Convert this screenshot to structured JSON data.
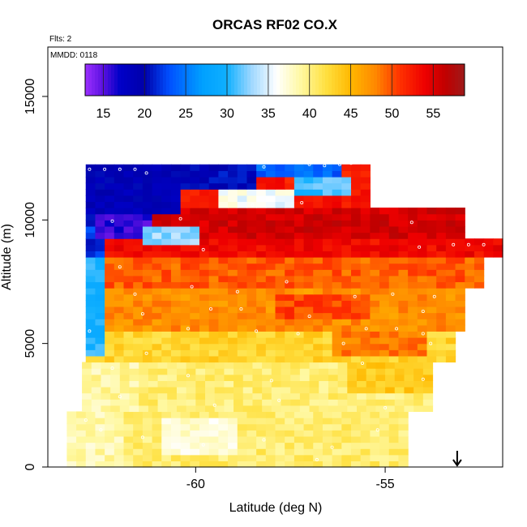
{
  "chart_data": {
    "type": "heatmap",
    "title": "ORCAS RF02 CO.X",
    "note_flights": "Flts: 2",
    "note_mmdd": "MMDD: 0118",
    "xlabel": "Latitude (deg N)",
    "ylabel": "Altitude (m)",
    "xlim": [
      -63.9,
      -51.9
    ],
    "ylim": [
      0,
      17000
    ],
    "x_ticks": [
      -60,
      -55
    ],
    "x_tick_labels": [
      "-60",
      "-55"
    ],
    "y_ticks": [
      0,
      5000,
      10000,
      15000
    ],
    "y_tick_labels": [
      "0",
      "5000",
      "10000",
      "15000"
    ],
    "colorbar": {
      "min": 12.8,
      "max": 58.8,
      "ticks": [
        15,
        20,
        25,
        30,
        35,
        40,
        45,
        50,
        55
      ],
      "tick_labels": [
        "15",
        "20",
        "25",
        "30",
        "35",
        "40",
        "45",
        "50",
        "55"
      ],
      "dividers": [
        15,
        20,
        25,
        30,
        35,
        40,
        45,
        50,
        55
      ],
      "stops": [
        [
          12.8,
          "#9b30ff"
        ],
        [
          15,
          "#5a10e0"
        ],
        [
          17,
          "#0000c8"
        ],
        [
          20,
          "#0000aa"
        ],
        [
          23,
          "#0050ff"
        ],
        [
          27,
          "#00a0ff"
        ],
        [
          30,
          "#10b0ff"
        ],
        [
          33,
          "#a0d8ff"
        ],
        [
          36,
          "#ffffff"
        ],
        [
          39,
          "#fff8a0"
        ],
        [
          42,
          "#ffe040"
        ],
        [
          45,
          "#ffb800"
        ],
        [
          48,
          "#ff8800"
        ],
        [
          51,
          "#ff3000"
        ],
        [
          54,
          "#ee0000"
        ],
        [
          56.5,
          "#c00000"
        ],
        [
          58.8,
          "#9e1a1a"
        ]
      ]
    },
    "grid": false,
    "arrow_marker_lat": -53.1,
    "cell_size": {
      "dlat": 0.25,
      "dalt": 250
    },
    "bands": [
      {
        "a0": 0,
        "a1": 2250,
        "lat0": -63.4,
        "lat1": -54.5,
        "v": 40.5
      },
      {
        "a0": 2250,
        "a1": 4250,
        "lat0": -63.0,
        "lat1": -53.8,
        "v": 40.3
      },
      {
        "a0": 4250,
        "a1": 5500,
        "lat0": -62.9,
        "lat1": -53.2,
        "v": 42.8
      },
      {
        "a0": 5500,
        "a1": 7250,
        "lat0": -62.9,
        "lat1": -53.1,
        "v": 47.5
      },
      {
        "a0": 7250,
        "a1": 8500,
        "lat0": -62.9,
        "lat1": -52.5,
        "v": 49.5
      },
      {
        "a0": 8500,
        "a1": 9250,
        "lat0": -62.9,
        "lat1": -52.0,
        "v": 53.5
      },
      {
        "a0": 9250,
        "a1": 10500,
        "lat0": -62.9,
        "lat1": -53.0,
        "v": 55.5
      },
      {
        "a0": 10500,
        "a1": 12250,
        "lat0": -62.9,
        "lat1": -55.5,
        "v": 52.5
      }
    ],
    "regions": [
      {
        "lat0": -62.9,
        "lat1": -62.3,
        "a0": 4500,
        "a1": 8500,
        "v": 30
      },
      {
        "lat0": -62.9,
        "lat1": -62.5,
        "a0": 8500,
        "a1": 11000,
        "v": 22
      },
      {
        "lat0": -62.9,
        "lat1": -60.5,
        "a0": 10250,
        "a1": 12250,
        "v": 19
      },
      {
        "lat0": -62.6,
        "lat1": -61.2,
        "a0": 9250,
        "a1": 10250,
        "v": 16
      },
      {
        "lat0": -60.5,
        "lat1": -58.5,
        "a0": 11250,
        "a1": 12250,
        "v": 20
      },
      {
        "lat0": -58.5,
        "lat1": -56.2,
        "a0": 11750,
        "a1": 12250,
        "v": 24
      },
      {
        "lat0": -61.5,
        "lat1": -60.0,
        "a0": 9000,
        "a1": 9750,
        "v": 33
      },
      {
        "lat0": -59.5,
        "lat1": -57.5,
        "a0": 10500,
        "a1": 11250,
        "v": 36
      },
      {
        "lat0": -57.5,
        "lat1": -56.0,
        "a0": 11000,
        "a1": 11750,
        "v": 31
      },
      {
        "lat0": -63.4,
        "lat1": -62.0,
        "a0": 0,
        "a1": 2250,
        "v": 38.5
      },
      {
        "lat0": -61.0,
        "lat1": -59.0,
        "a0": 500,
        "a1": 2000,
        "v": 37.5
      },
      {
        "lat0": -62.9,
        "lat1": -61.5,
        "a0": 2250,
        "a1": 4250,
        "v": 39
      },
      {
        "lat0": -56.5,
        "lat1": -54.0,
        "a0": 4500,
        "a1": 5500,
        "v": 48.5
      },
      {
        "lat0": -58.0,
        "lat1": -55.5,
        "a0": 6000,
        "a1": 7000,
        "v": 50.5
      },
      {
        "lat0": -56.0,
        "lat1": -53.5,
        "a0": 3000,
        "a1": 4250,
        "v": 43.5
      }
    ],
    "sample_points": [
      [
        -62.8,
        12050
      ],
      [
        -62.4,
        12050
      ],
      [
        -62.0,
        12050
      ],
      [
        -61.6,
        12050
      ],
      [
        -61.3,
        11900
      ],
      [
        -57.0,
        12250
      ],
      [
        -56.6,
        12200
      ],
      [
        -56.2,
        12250
      ],
      [
        -55.9,
        12300
      ],
      [
        -58.2,
        12150
      ],
      [
        -62.2,
        9950
      ],
      [
        -60.4,
        10050
      ],
      [
        -58.5,
        10600
      ],
      [
        -57.2,
        10700
      ],
      [
        -54.3,
        9900
      ],
      [
        -53.2,
        9000
      ],
      [
        -52.8,
        9000
      ],
      [
        -52.4,
        9000
      ],
      [
        -54.1,
        8900
      ],
      [
        -59.8,
        8800
      ],
      [
        -62.0,
        8100
      ],
      [
        -61.6,
        7000
      ],
      [
        -60.1,
        7300
      ],
      [
        -58.9,
        7100
      ],
      [
        -57.6,
        7500
      ],
      [
        -55.8,
        6900
      ],
      [
        -54.8,
        7000
      ],
      [
        -53.7,
        6900
      ],
      [
        -52.2,
        6500
      ],
      [
        -52.0,
        7400
      ],
      [
        -61.4,
        6200
      ],
      [
        -59.6,
        6400
      ],
      [
        -58.8,
        6400
      ],
      [
        -57.0,
        6100
      ],
      [
        -55.5,
        5600
      ],
      [
        -54.0,
        6300
      ],
      [
        -62.8,
        5500
      ],
      [
        -60.2,
        5600
      ],
      [
        -58.4,
        5500
      ],
      [
        -57.3,
        5400
      ],
      [
        -56.1,
        5000
      ],
      [
        -54.7,
        5600
      ],
      [
        -54.0,
        5400
      ],
      [
        -53.8,
        5000
      ],
      [
        -61.3,
        4600
      ],
      [
        -62.2,
        4000
      ],
      [
        -60.2,
        3700
      ],
      [
        -58.0,
        3500
      ],
      [
        -55.6,
        4200
      ],
      [
        -54.0,
        3550
      ],
      [
        -53.6,
        3400
      ],
      [
        -53.2,
        3100
      ],
      [
        -62.0,
        2850
      ],
      [
        -59.5,
        2500
      ],
      [
        -57.8,
        2700
      ],
      [
        -55.0,
        2400
      ],
      [
        -53.4,
        2850
      ],
      [
        -62.5,
        1500
      ],
      [
        -61.4,
        1200
      ],
      [
        -59.8,
        900
      ],
      [
        -58.2,
        1100
      ],
      [
        -56.4,
        800
      ],
      [
        -55.2,
        1500
      ],
      [
        -56.8,
        300
      ],
      [
        -62.9,
        1900
      ]
    ]
  }
}
